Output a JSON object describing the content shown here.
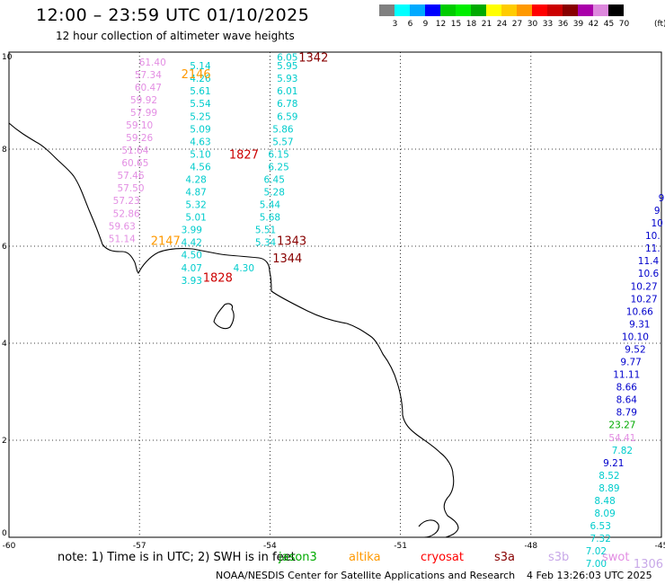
{
  "title": "12:00 – 23:59 UTC 01/10/2025",
  "subtitle": "12 hour collection of altimeter wave heights",
  "legend": {
    "units": "(ft)",
    "bins": [
      {
        "label": "3",
        "color": "#808080"
      },
      {
        "label": "6",
        "color": "#00ffff"
      },
      {
        "label": "9",
        "color": "#00aaff"
      },
      {
        "label": "12",
        "color": "#0000ff"
      },
      {
        "label": "15",
        "color": "#00cc00"
      },
      {
        "label": "18",
        "color": "#00ee00"
      },
      {
        "label": "21",
        "color": "#00aa00"
      },
      {
        "label": "24",
        "color": "#ffff00"
      },
      {
        "label": "27",
        "color": "#ffcc00"
      },
      {
        "label": "30",
        "color": "#ff9900"
      },
      {
        "label": "33",
        "color": "#ff0000"
      },
      {
        "label": "36",
        "color": "#cc0000"
      },
      {
        "label": "39",
        "color": "#880000"
      },
      {
        "label": "42",
        "color": "#aa00aa"
      },
      {
        "label": "45",
        "color": "#dd88dd"
      },
      {
        "label": "70",
        "color": "#000000"
      }
    ]
  },
  "axes": {
    "lon_ticks": [
      "-60",
      "-57",
      "-54",
      "-51",
      "-48",
      "-45"
    ],
    "lat_ticks": [
      "10",
      "8",
      "6",
      "4",
      "2",
      "0"
    ],
    "lon_range": [
      -60,
      -45
    ],
    "lat_range": [
      0,
      10
    ],
    "grid": true
  },
  "tracks": [
    {
      "color": "#e38ee3",
      "points": [
        {
          "lon": -56.7,
          "lat": 9.8,
          "v": "61.40"
        },
        {
          "lon": -56.8,
          "lat": 9.54,
          "v": "57.34"
        },
        {
          "lon": -56.8,
          "lat": 9.28,
          "v": "60.47"
        },
        {
          "lon": -56.9,
          "lat": 9.02,
          "v": "59.92"
        },
        {
          "lon": -56.9,
          "lat": 8.76,
          "v": "57.99"
        },
        {
          "lon": -57.0,
          "lat": 8.5,
          "v": "59.10"
        },
        {
          "lon": -57.0,
          "lat": 8.24,
          "v": "59.26"
        },
        {
          "lon": -57.1,
          "lat": 7.98,
          "v": "51.64"
        },
        {
          "lon": -57.1,
          "lat": 7.72,
          "v": "60.65"
        },
        {
          "lon": -57.2,
          "lat": 7.46,
          "v": "57.46"
        },
        {
          "lon": -57.2,
          "lat": 7.2,
          "v": "57.50"
        },
        {
          "lon": -57.3,
          "lat": 6.94,
          "v": "57.23"
        },
        {
          "lon": -57.3,
          "lat": 6.68,
          "v": "52.86"
        },
        {
          "lon": -57.4,
          "lat": 6.42,
          "v": "59.63"
        },
        {
          "lon": -57.4,
          "lat": 6.16,
          "v": "51.14"
        }
      ]
    },
    {
      "color": "#00cccc",
      "points": [
        {
          "lon": -55.6,
          "lat": 9.72,
          "v": "5.14"
        },
        {
          "lon": -55.6,
          "lat": 9.46,
          "v": "4.26"
        },
        {
          "lon": -55.6,
          "lat": 9.2,
          "v": "5.61"
        },
        {
          "lon": -55.6,
          "lat": 8.94,
          "v": "5.54"
        },
        {
          "lon": -55.6,
          "lat": 8.68,
          "v": "5.25"
        },
        {
          "lon": -55.6,
          "lat": 8.42,
          "v": "5.09"
        },
        {
          "lon": -55.6,
          "lat": 8.16,
          "v": "4.63"
        },
        {
          "lon": -55.6,
          "lat": 7.9,
          "v": "5.10"
        },
        {
          "lon": -55.6,
          "lat": 7.64,
          "v": "4.56"
        },
        {
          "lon": -55.7,
          "lat": 7.38,
          "v": "4.28"
        },
        {
          "lon": -55.7,
          "lat": 7.12,
          "v": "4.87"
        },
        {
          "lon": -55.7,
          "lat": 6.86,
          "v": "5.32"
        },
        {
          "lon": -55.7,
          "lat": 6.6,
          "v": "5.01"
        },
        {
          "lon": -55.8,
          "lat": 6.34,
          "v": "3.99"
        },
        {
          "lon": -55.8,
          "lat": 6.08,
          "v": "4.42"
        },
        {
          "lon": -55.8,
          "lat": 5.82,
          "v": "4.50"
        },
        {
          "lon": -55.8,
          "lat": 5.56,
          "v": "4.07"
        },
        {
          "lon": -55.8,
          "lat": 5.3,
          "v": "3.93"
        }
      ]
    },
    {
      "color": "#00cccc",
      "points": [
        {
          "lon": -53.6,
          "lat": 9.9,
          "v": "6.05"
        },
        {
          "lon": -53.6,
          "lat": 9.72,
          "v": "5.95"
        },
        {
          "lon": -53.6,
          "lat": 9.46,
          "v": "5.93"
        },
        {
          "lon": -53.6,
          "lat": 9.2,
          "v": "6.01"
        },
        {
          "lon": -53.6,
          "lat": 8.94,
          "v": "6.78"
        },
        {
          "lon": -53.6,
          "lat": 8.68,
          "v": "6.59"
        },
        {
          "lon": -53.7,
          "lat": 8.42,
          "v": "5.86"
        },
        {
          "lon": -53.7,
          "lat": 8.16,
          "v": "5.57"
        },
        {
          "lon": -53.8,
          "lat": 7.9,
          "v": "6.15"
        },
        {
          "lon": -53.8,
          "lat": 7.64,
          "v": "6.25"
        },
        {
          "lon": -53.9,
          "lat": 7.38,
          "v": "6.45"
        },
        {
          "lon": -53.9,
          "lat": 7.12,
          "v": "5.28"
        },
        {
          "lon": -54.0,
          "lat": 6.86,
          "v": "5.44"
        },
        {
          "lon": -54.0,
          "lat": 6.6,
          "v": "5.68"
        },
        {
          "lon": -54.1,
          "lat": 6.34,
          "v": "5.51"
        },
        {
          "lon": -54.1,
          "lat": 6.08,
          "v": "5.34"
        },
        {
          "lon": -54.6,
          "lat": 5.56,
          "v": "4.30"
        }
      ]
    },
    {
      "color": "#0000cc",
      "points": [
        {
          "lon": -45.0,
          "lat": 7.0,
          "v": "9"
        },
        {
          "lon": -45.1,
          "lat": 6.74,
          "v": "9"
        },
        {
          "lon": -45.1,
          "lat": 6.48,
          "v": "10"
        },
        {
          "lon": -45.2,
          "lat": 6.22,
          "v": "10."
        },
        {
          "lon": -45.2,
          "lat": 5.96,
          "v": "11."
        },
        {
          "lon": -45.3,
          "lat": 5.7,
          "v": "11.4"
        },
        {
          "lon": -45.3,
          "lat": 5.44,
          "v": "10.6"
        },
        {
          "lon": -45.4,
          "lat": 5.18,
          "v": "10.27"
        },
        {
          "lon": -45.4,
          "lat": 4.92,
          "v": "10.27"
        },
        {
          "lon": -45.5,
          "lat": 4.66,
          "v": "10.66"
        },
        {
          "lon": -45.5,
          "lat": 4.4,
          "v": "9.31"
        },
        {
          "lon": -45.6,
          "lat": 4.14,
          "v": "10.10"
        },
        {
          "lon": -45.6,
          "lat": 3.88,
          "v": "9.52"
        },
        {
          "lon": -45.7,
          "lat": 3.62,
          "v": "9.77"
        },
        {
          "lon": -45.8,
          "lat": 3.36,
          "v": "11.11"
        },
        {
          "lon": -45.8,
          "lat": 3.1,
          "v": "8.66"
        },
        {
          "lon": -45.8,
          "lat": 2.84,
          "v": "8.64"
        },
        {
          "lon": -45.8,
          "lat": 2.58,
          "v": "8.79"
        }
      ]
    },
    {
      "color": "#00aa00",
      "points": [
        {
          "lon": -45.9,
          "lat": 2.32,
          "v": "23.27"
        }
      ]
    },
    {
      "color": "#e38ee3",
      "points": [
        {
          "lon": -45.9,
          "lat": 2.06,
          "v": "54.41"
        }
      ]
    },
    {
      "color": "#00cccc",
      "points": [
        {
          "lon": -45.9,
          "lat": 1.8,
          "v": "7.82"
        }
      ]
    },
    {
      "color": "#0000cc",
      "points": [
        {
          "lon": -46.1,
          "lat": 1.54,
          "v": "9.21"
        }
      ]
    },
    {
      "color": "#00cccc",
      "points": [
        {
          "lon": -46.2,
          "lat": 1.28,
          "v": "8.52"
        },
        {
          "lon": -46.2,
          "lat": 1.02,
          "v": "8.89"
        },
        {
          "lon": -46.3,
          "lat": 0.76,
          "v": "8.48"
        },
        {
          "lon": -46.3,
          "lat": 0.5,
          "v": "8.09"
        },
        {
          "lon": -46.4,
          "lat": 0.24,
          "v": "6.53"
        },
        {
          "lon": -46.4,
          "lat": -0.02,
          "v": "7.32"
        },
        {
          "lon": -46.5,
          "lat": -0.28,
          "v": "7.02"
        },
        {
          "lon": -46.5,
          "lat": -0.54,
          "v": "7.00"
        }
      ]
    }
  ],
  "passes": [
    {
      "label": "1342",
      "color": "#880000",
      "lon": -53.0,
      "lat": 9.9
    },
    {
      "label": "2146",
      "color": "#ff9900",
      "lon": -55.7,
      "lat": 9.56
    },
    {
      "label": "1827",
      "color": "#cc0000",
      "lon": -54.6,
      "lat": 7.9
    },
    {
      "label": "2147",
      "color": "#ff9900",
      "lon": -56.4,
      "lat": 6.12
    },
    {
      "label": "1343",
      "color": "#880000",
      "lon": -53.5,
      "lat": 6.12
    },
    {
      "label": "1344",
      "color": "#880000",
      "lon": -53.6,
      "lat": 5.76
    },
    {
      "label": "1828",
      "color": "#cc0000",
      "lon": -55.2,
      "lat": 5.36
    },
    {
      "label": "1306",
      "color": "#c8a8e8",
      "lon": -45.3,
      "lat": -0.54
    }
  ],
  "note": {
    "prefix": "note:  1) Time is in UTC; 2) SWH is in feet",
    "satellites": [
      {
        "name": "jason3",
        "color": "#00aa00"
      },
      {
        "name": "altika",
        "color": "#ff9900"
      },
      {
        "name": "cryosat",
        "color": "#ff0000"
      },
      {
        "name": "s3a",
        "color": "#880000"
      },
      {
        "name": "s3b",
        "color": "#c8a8e8"
      },
      {
        "name": "swot",
        "color": "#e38ee3"
      }
    ]
  },
  "credit": "NOAA/NESDIS Center for Satellite Applications and Research",
  "timestamp": "4 Feb 13:26:03 UTC 2025"
}
